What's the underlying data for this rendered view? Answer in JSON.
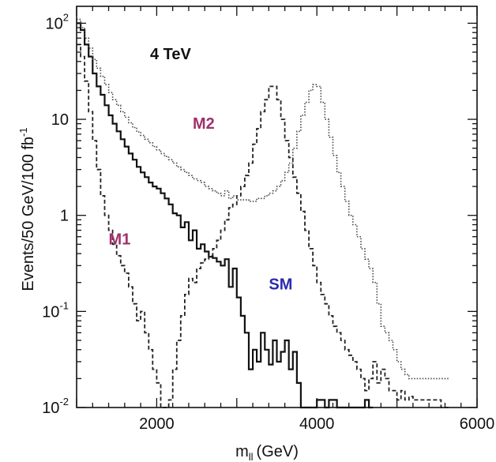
{
  "chart_data": {
    "type": "line",
    "title": "4 TeV",
    "xlabel": "m",
    "xlabel_sub": "ll",
    "xlabel_unit": "(GeV)",
    "ylabel": "Events/50 GeV/100 fb",
    "ylabel_sup": "-1",
    "xlim": [
      1000,
      6000
    ],
    "ylim": [
      0.01,
      150
    ],
    "yscale": "log",
    "x_ticks": [
      2000,
      4000,
      6000
    ],
    "y_ticks": [
      {
        "value": 0.01,
        "base": "10",
        "exp": "-2"
      },
      {
        "value": 0.1,
        "base": "10",
        "exp": "-1"
      },
      {
        "value": 1,
        "base": "1",
        "exp": ""
      },
      {
        "value": 10,
        "base": "10",
        "exp": ""
      },
      {
        "value": 100,
        "base": "10",
        "exp": "2"
      }
    ],
    "annotations": [
      {
        "text": "M2",
        "x": 2450,
        "y": 8,
        "color": "#a0306a"
      },
      {
        "text": "M1",
        "x": 1400,
        "y": 0.5,
        "color": "#a0306a"
      },
      {
        "text": "SM",
        "x": 3400,
        "y": 0.17,
        "color": "#2a2ab0"
      }
    ],
    "series": [
      {
        "name": "SM",
        "style": "solid",
        "x": [
          1000,
          1050,
          1100,
          1150,
          1200,
          1250,
          1300,
          1350,
          1400,
          1450,
          1500,
          1550,
          1600,
          1650,
          1700,
          1750,
          1800,
          1850,
          1900,
          1950,
          2000,
          2050,
          2100,
          2150,
          2200,
          2250,
          2300,
          2350,
          2400,
          2450,
          2500,
          2550,
          2600,
          2650,
          2700,
          2750,
          2800,
          2850,
          2900,
          2950,
          3000,
          3050,
          3100,
          3150,
          3200,
          3250,
          3300,
          3350,
          3400,
          3450,
          3500,
          3550,
          3600,
          3650,
          3700,
          3750,
          3800,
          3850,
          3900,
          3950,
          4000,
          4050,
          4100,
          4150,
          4200,
          4250,
          4300,
          4350,
          4400,
          4450,
          4500,
          4550,
          4600,
          4650
        ],
        "y": [
          100,
          85,
          60,
          45,
          30,
          22,
          18,
          14,
          11,
          9,
          7.5,
          6.2,
          5.2,
          4.4,
          3.8,
          3.2,
          2.8,
          2.5,
          2.2,
          2,
          1.9,
          1.7,
          1.5,
          1.3,
          1.05,
          1.0,
          0.75,
          0.85,
          0.55,
          0.7,
          0.45,
          0.5,
          0.42,
          0.37,
          0.36,
          0.33,
          0.3,
          0.35,
          0.18,
          0.28,
          0.14,
          0.09,
          0.06,
          0.025,
          0.04,
          0.03,
          0.06,
          0.04,
          0.028,
          0.05,
          0.03,
          0.038,
          0.05,
          0.025,
          0.038,
          0.018,
          0.01,
          0.01,
          0.01,
          0.01,
          0.012,
          0.012,
          0.01,
          0.012,
          0.012,
          0.01,
          0.01,
          0.01,
          0.01,
          0.01,
          0.01,
          0.01,
          0.012,
          0.01
        ]
      },
      {
        "name": "M1",
        "style": "dashed",
        "x": [
          1000,
          1050,
          1100,
          1150,
          1200,
          1250,
          1300,
          1350,
          1400,
          1450,
          1500,
          1550,
          1600,
          1650,
          1700,
          1750,
          1800,
          1850,
          1900,
          1950,
          2000,
          2050,
          2100,
          2150,
          2200,
          2250,
          2300,
          2350,
          2400,
          2450,
          2500,
          2550,
          2600,
          2650,
          2700,
          2750,
          2800,
          2850,
          2900,
          2950,
          3000,
          3050,
          3100,
          3150,
          3200,
          3250,
          3300,
          3350,
          3400,
          3450,
          3500,
          3550,
          3600,
          3650,
          3700,
          3750,
          3800,
          3850,
          3900,
          3950,
          4000,
          4050,
          4100,
          4150,
          4200,
          4250,
          4300,
          4350,
          4400,
          4450,
          4500,
          4550,
          4600,
          4650,
          4700,
          4750,
          4800,
          4850,
          4900,
          4950,
          5000,
          5050,
          5100,
          5150,
          5200,
          5250,
          5300,
          5350,
          5400,
          5450,
          5500,
          5550,
          5600
        ],
        "y": [
          60,
          45,
          25,
          12,
          6,
          3,
          1.6,
          1.0,
          0.7,
          0.5,
          0.38,
          0.3,
          0.25,
          0.18,
          0.12,
          0.08,
          0.1,
          0.06,
          0.04,
          0.025,
          0.018,
          0.01,
          0.01,
          0.012,
          0.025,
          0.05,
          0.09,
          0.15,
          0.22,
          0.2,
          0.28,
          0.32,
          0.35,
          0.38,
          0.45,
          0.55,
          0.7,
          0.9,
          1.2,
          1.3,
          1.6,
          2.0,
          2.6,
          3.5,
          5.5,
          8,
          12,
          16,
          22,
          22,
          16,
          10,
          6,
          4,
          2.5,
          1.7,
          1.1,
          0.7,
          0.45,
          0.3,
          0.2,
          0.15,
          0.12,
          0.09,
          0.07,
          0.06,
          0.05,
          0.04,
          0.035,
          0.03,
          0.025,
          0.02,
          0.015,
          0.02,
          0.03,
          0.018,
          0.025,
          0.02,
          0.015,
          0.015,
          0.012,
          0.015,
          0.012,
          0.013,
          0.012,
          0.012,
          0.012,
          0.012,
          0.012,
          0.012,
          0.012,
          0.01,
          0.01
        ]
      },
      {
        "name": "M2",
        "style": "dotted",
        "x": [
          1000,
          1050,
          1100,
          1150,
          1200,
          1250,
          1300,
          1350,
          1400,
          1450,
          1500,
          1550,
          1600,
          1650,
          1700,
          1750,
          1800,
          1850,
          1900,
          1950,
          2000,
          2050,
          2100,
          2150,
          2200,
          2250,
          2300,
          2350,
          2400,
          2450,
          2500,
          2550,
          2600,
          2650,
          2700,
          2750,
          2800,
          2850,
          2900,
          2950,
          3000,
          3050,
          3100,
          3150,
          3200,
          3250,
          3300,
          3350,
          3400,
          3450,
          3500,
          3550,
          3600,
          3650,
          3700,
          3750,
          3800,
          3850,
          3900,
          3950,
          4000,
          4050,
          4100,
          4150,
          4200,
          4250,
          4300,
          4350,
          4400,
          4450,
          4500,
          4550,
          4600,
          4650,
          4700,
          4750,
          4800,
          4850,
          4900,
          4950,
          5000,
          5050,
          5100,
          5150,
          5200,
          5250,
          5300,
          5350,
          5400,
          5450,
          5500,
          5550,
          5600
        ],
        "y": [
          110,
          90,
          70,
          55,
          42,
          34,
          28,
          23,
          19,
          16,
          14,
          12,
          10.5,
          9.2,
          8.2,
          7.4,
          6.8,
          6.2,
          5.7,
          5.2,
          4.8,
          4.4,
          4.1,
          3.8,
          3.5,
          3.2,
          3.0,
          2.8,
          2.6,
          2.4,
          2.3,
          2.2,
          2.0,
          1.9,
          1.8,
          1.7,
          1.6,
          1.8,
          1.5,
          1.6,
          1.45,
          1.45,
          1.45,
          1.4,
          1.4,
          1.5,
          1.5,
          1.6,
          1.7,
          1.8,
          2.0,
          2.3,
          2.8,
          3.5,
          5,
          7.5,
          11,
          15,
          20,
          23,
          22,
          15,
          10,
          6.5,
          4.2,
          2.8,
          2.0,
          1.4,
          1.0,
          0.8,
          0.6,
          0.45,
          0.35,
          0.28,
          0.2,
          0.12,
          0.07,
          0.06,
          0.05,
          0.04,
          0.03,
          0.025,
          0.022,
          0.02,
          0.02,
          0.02,
          0.02,
          0.02,
          0.02,
          0.02,
          0.02,
          0.02,
          0.02
        ]
      }
    ]
  }
}
